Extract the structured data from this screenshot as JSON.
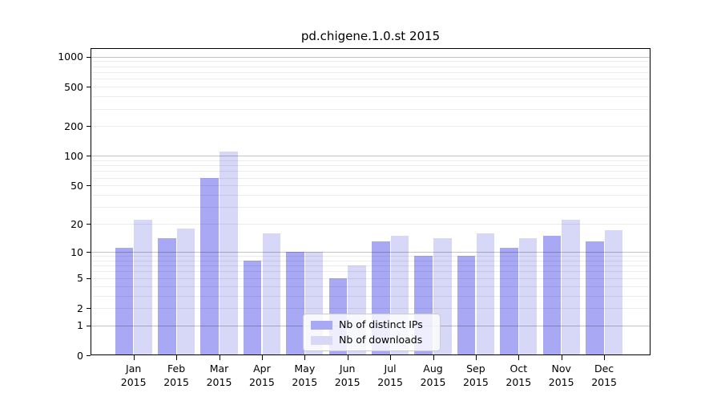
{
  "chart_data": {
    "type": "bar",
    "title": "pd.chigene.1.0.st 2015",
    "categories": [
      "Jan",
      "Feb",
      "Mar",
      "Apr",
      "May",
      "Jun",
      "Jul",
      "Aug",
      "Sep",
      "Oct",
      "Nov",
      "Dec"
    ],
    "year_label": "2015",
    "series": [
      {
        "name": "Nb of distinct IPs",
        "color": "#a8a8f5",
        "values": [
          11,
          14,
          60,
          8,
          10,
          5,
          13,
          9,
          9,
          11,
          15,
          13
        ]
      },
      {
        "name": "Nb of downloads",
        "color": "#d7d7f7",
        "values": [
          22,
          18,
          110,
          16,
          10,
          7,
          15,
          14,
          16,
          14,
          22,
          17
        ]
      }
    ],
    "yscale": "log1p",
    "yticks": [
      0,
      1,
      2,
      5,
      10,
      20,
      50,
      100,
      200,
      500,
      1000
    ],
    "ylim": [
      0,
      1220
    ],
    "grid": "horizontal major+minor, drawn over bars",
    "legend_position": "lower center"
  }
}
